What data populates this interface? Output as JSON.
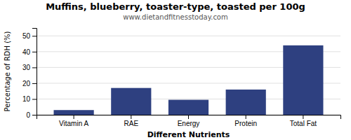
{
  "chart_data": {
    "type": "bar",
    "title": "Muffins, blueberry, toaster-type, toasted per 100g",
    "subtitle": "www.dietandfitnesstoday.com",
    "xlabel": "Different Nutrients",
    "ylabel": "Percentage of RDH (%)",
    "categories": [
      "Vitamin A",
      "RAE",
      "Energy",
      "Protein",
      "Total Fat"
    ],
    "values": [
      3,
      17,
      9.5,
      16,
      44
    ],
    "color": "#2e4080",
    "ylim": [
      0,
      55
    ],
    "yticks": [
      0,
      10,
      20,
      30,
      40,
      50
    ],
    "grid": true
  }
}
